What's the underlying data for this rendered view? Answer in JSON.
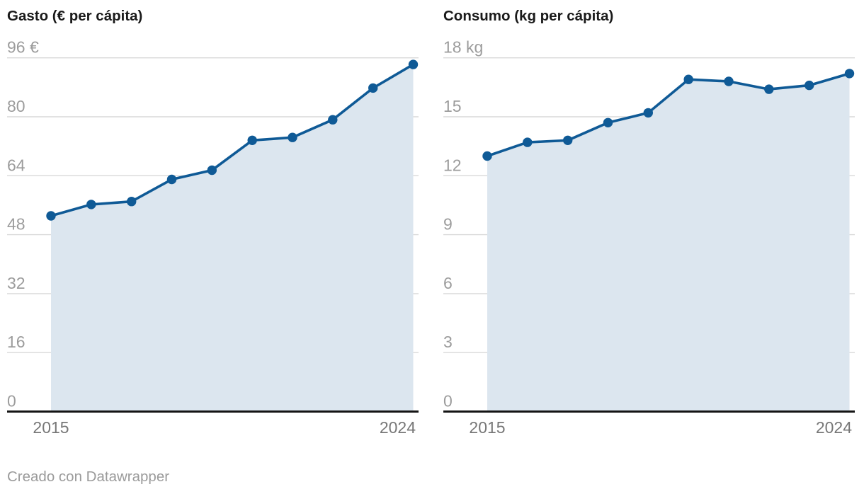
{
  "page": {
    "background": "#ffffff"
  },
  "footer": {
    "credit": "Creado con Datawrapper"
  },
  "colors": {
    "line": "#0f5a96",
    "point": "#0f5a96",
    "area_fill": "#dce6ef",
    "gridline": "#d9d9d9",
    "axis_line": "#141414",
    "y_tick_label": "#9c9c9c",
    "x_tick_label": "#777777",
    "title": "#1a1a1a",
    "credit": "#9b9b9b"
  },
  "chart_data": [
    {
      "type": "area",
      "title": "Gasto (€ per cápita)",
      "x": [
        2015,
        2016,
        2017,
        2018,
        2019,
        2020,
        2021,
        2022,
        2023,
        2024
      ],
      "values": [
        53.1,
        56.2,
        57.0,
        63.0,
        65.5,
        73.6,
        74.4,
        79.2,
        87.8,
        94.2
      ],
      "unit": "€",
      "ylim": [
        0,
        96
      ],
      "grid": true,
      "legend": "none",
      "y_ticks": [
        {
          "v": 96,
          "label": "96 €"
        },
        {
          "v": 80,
          "label": "80"
        },
        {
          "v": 64,
          "label": "64"
        },
        {
          "v": 48,
          "label": "48"
        },
        {
          "v": 32,
          "label": "32"
        },
        {
          "v": 16,
          "label": "16"
        },
        {
          "v": 0,
          "label": "0"
        }
      ],
      "x_ticks": [
        {
          "x": 2015,
          "label": "2015"
        },
        {
          "x": 2024,
          "label": "2024"
        }
      ]
    },
    {
      "type": "area",
      "title": "Consumo (kg per cápita)",
      "x": [
        2015,
        2016,
        2017,
        2018,
        2019,
        2020,
        2021,
        2022,
        2023,
        2024
      ],
      "values": [
        13.0,
        13.7,
        13.8,
        14.7,
        15.2,
        16.9,
        16.8,
        16.4,
        16.6,
        17.2
      ],
      "unit": "kg",
      "ylim": [
        0,
        18
      ],
      "grid": true,
      "legend": "none",
      "y_ticks": [
        {
          "v": 18,
          "label": "18 kg"
        },
        {
          "v": 15,
          "label": "15"
        },
        {
          "v": 12,
          "label": "12"
        },
        {
          "v": 9,
          "label": "9"
        },
        {
          "v": 6,
          "label": "6"
        },
        {
          "v": 3,
          "label": "3"
        },
        {
          "v": 0,
          "label": "0"
        }
      ],
      "x_ticks": [
        {
          "x": 2015,
          "label": "2015"
        },
        {
          "x": 2024,
          "label": "2024"
        }
      ]
    }
  ]
}
